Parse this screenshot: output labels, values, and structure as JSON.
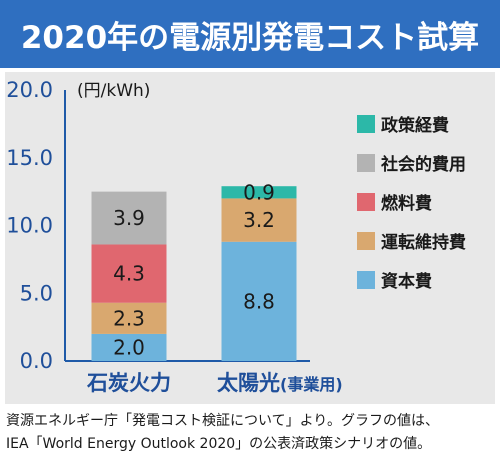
{
  "header": {
    "title": "2020年の電源別発電コスト試算"
  },
  "footnote": {
    "line1": "資源エネルギー庁「発電コスト検証について」より。グラフの値は、",
    "line2": "IEA「World Energy Outlook 2020」の公表済政策シナリオの値。"
  },
  "colors": {
    "title_bg": "#2f6fc0",
    "panel_bg": "#e8e8e8",
    "資本費": "#6db3dc",
    "運転維持費": "#d9a86f",
    "燃料費": "#e0676f",
    "社会的費用": "#b3b3b3",
    "政策経費": "#2cb8a8"
  },
  "chart_data": {
    "type": "bar",
    "stacked": true,
    "unit": "(円/kWh)",
    "categories": [
      "石炭火力",
      "太陽光"
    ],
    "category_suffix": [
      "",
      "(事業用)"
    ],
    "ylim": [
      0,
      20
    ],
    "yticks": [
      "0.0",
      "5.0",
      "10.0",
      "15.0",
      "20.0"
    ],
    "grid": false,
    "legend_position": "right",
    "series": [
      {
        "name": "資本費",
        "values": [
          2.0,
          8.8
        ],
        "labels": [
          "2.0",
          "8.8"
        ]
      },
      {
        "name": "運転維持費",
        "values": [
          2.3,
          3.2
        ],
        "labels": [
          "2.3",
          "3.2"
        ]
      },
      {
        "name": "燃料費",
        "values": [
          4.3,
          0
        ],
        "labels": [
          "4.3",
          ""
        ]
      },
      {
        "name": "社会的費用",
        "values": [
          3.9,
          0
        ],
        "labels": [
          "3.9",
          ""
        ]
      },
      {
        "name": "政策経費",
        "values": [
          0,
          0.9
        ],
        "labels": [
          "",
          "0.9"
        ]
      }
    ],
    "legend_order": [
      "政策経費",
      "社会的費用",
      "燃料費",
      "運転維持費",
      "資本費"
    ]
  }
}
